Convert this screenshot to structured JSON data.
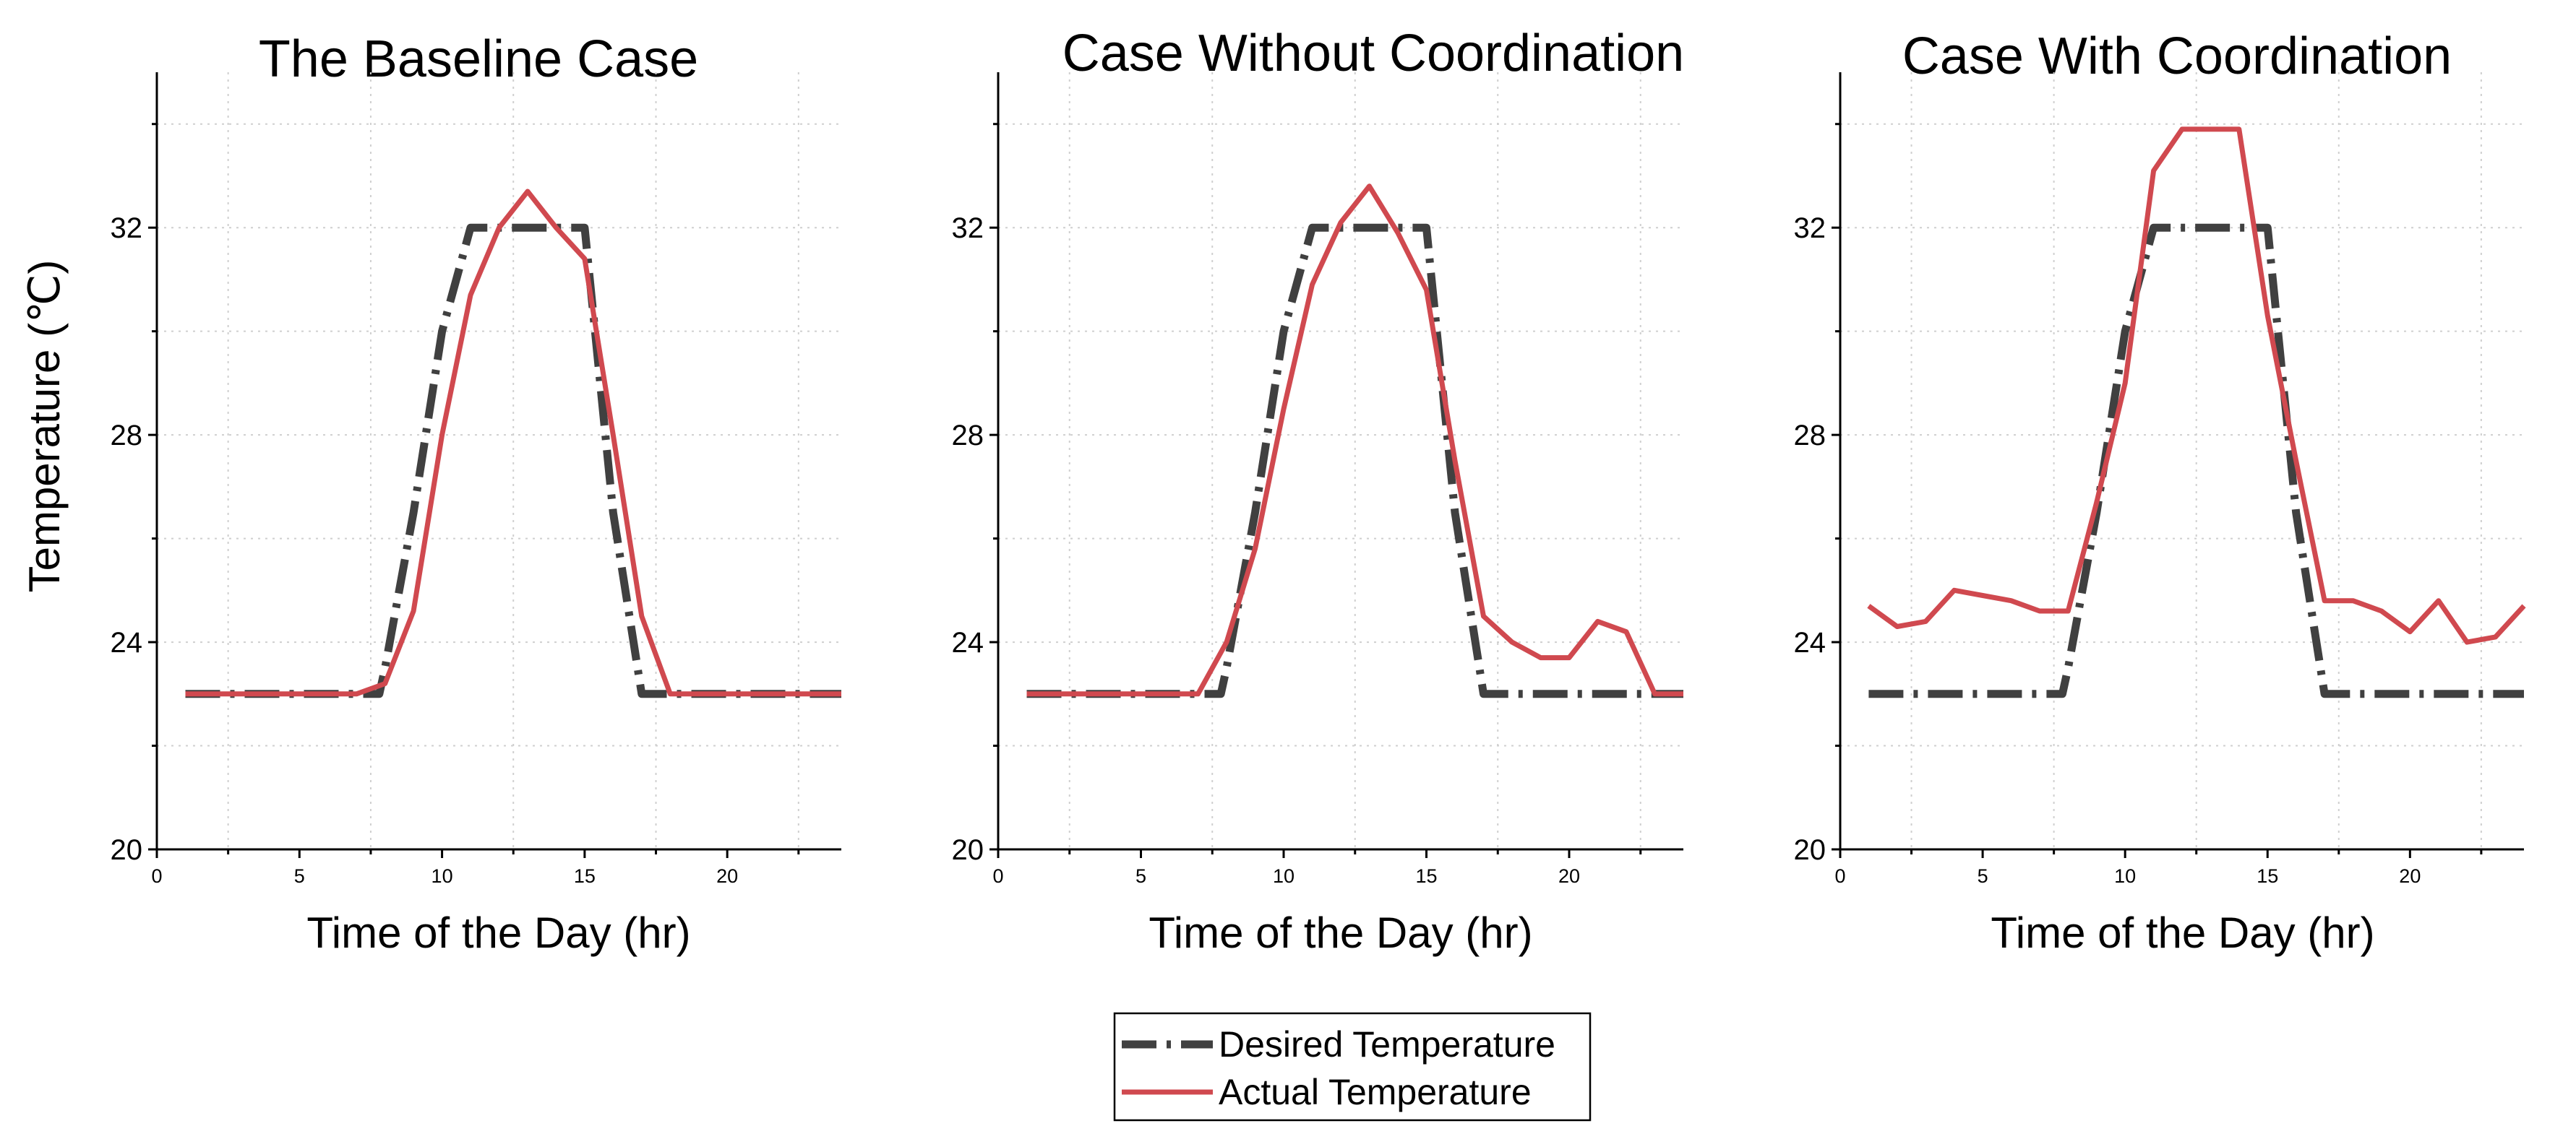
{
  "legend": {
    "desired_label": "Desired Temperature",
    "actual_label": "Actual Temperature"
  },
  "colors": {
    "desired": "#404040",
    "actual": "#d0494f"
  },
  "chart_data": [
    {
      "type": "line",
      "title": "The Baseline Case",
      "xlabel": "Time of the Day (hr)",
      "ylabel": "Temperature (℃)",
      "xlim": [
        0,
        24
      ],
      "ylim": [
        20,
        35
      ],
      "xticks": [
        0,
        5,
        10,
        15,
        20
      ],
      "yticks": [
        20,
        24,
        28,
        32
      ],
      "series": [
        {
          "name": "Desired Temperature",
          "x": [
            1,
            2,
            3,
            4,
            5,
            6,
            7,
            7.8,
            8,
            9,
            10,
            11,
            12,
            13,
            14,
            15,
            16,
            17,
            18,
            19,
            20,
            21,
            22,
            23,
            24
          ],
          "values": [
            23,
            23,
            23,
            23,
            23,
            23,
            23,
            23,
            23.5,
            26.5,
            30,
            32,
            32,
            32,
            32,
            32,
            26.5,
            23,
            23,
            23,
            23,
            23,
            23,
            23,
            23
          ]
        },
        {
          "name": "Actual Temperature",
          "x": [
            1,
            2,
            3,
            4,
            5,
            6,
            7,
            8,
            9,
            10,
            11,
            12,
            13,
            14,
            15,
            16,
            17,
            18,
            19,
            20,
            21,
            22,
            23,
            24
          ],
          "values": [
            23,
            23,
            23,
            23,
            23,
            23,
            23,
            23.2,
            24.6,
            28,
            30.7,
            32,
            32.7,
            32,
            31.4,
            28,
            24.5,
            23,
            23,
            23,
            23,
            23,
            23,
            23
          ]
        }
      ]
    },
    {
      "type": "line",
      "title": "Case Without Coordination",
      "xlabel": "Time of the Day (hr)",
      "ylabel": "",
      "xlim": [
        0,
        24
      ],
      "ylim": [
        20,
        35
      ],
      "xticks": [
        0,
        5,
        10,
        15,
        20
      ],
      "yticks": [
        20,
        24,
        28,
        32
      ],
      "series": [
        {
          "name": "Desired Temperature",
          "x": [
            1,
            2,
            3,
            4,
            5,
            6,
            7,
            7.8,
            8,
            9,
            10,
            11,
            12,
            13,
            14,
            15,
            16,
            17,
            18,
            19,
            20,
            21,
            22,
            23,
            24
          ],
          "values": [
            23,
            23,
            23,
            23,
            23,
            23,
            23,
            23,
            23.5,
            26.5,
            30,
            32,
            32,
            32,
            32,
            32,
            26.5,
            23,
            23,
            23,
            23,
            23,
            23,
            23,
            23
          ]
        },
        {
          "name": "Actual Temperature",
          "x": [
            1,
            2,
            3,
            4,
            5,
            6,
            7,
            8,
            9,
            10,
            11,
            12,
            13,
            14,
            15,
            16,
            17,
            18,
            19,
            20,
            21,
            22,
            23,
            24
          ],
          "values": [
            23,
            23,
            23,
            23,
            23,
            23,
            23,
            24,
            25.8,
            28.5,
            30.9,
            32.1,
            32.8,
            31.9,
            30.8,
            27.5,
            24.5,
            24,
            23.7,
            23.7,
            24.4,
            24.2,
            23,
            23
          ]
        }
      ]
    },
    {
      "type": "line",
      "title": "Case With Coordination",
      "xlabel": "Time of the Day (hr)",
      "ylabel": "",
      "xlim": [
        0,
        24
      ],
      "ylim": [
        20,
        35
      ],
      "xticks": [
        0,
        5,
        10,
        15,
        20
      ],
      "yticks": [
        20,
        24,
        28,
        32
      ],
      "series": [
        {
          "name": "Desired Temperature",
          "x": [
            1,
            2,
            3,
            4,
            5,
            6,
            7,
            7.8,
            8,
            9,
            10,
            11,
            12,
            13,
            14,
            15,
            16,
            17,
            18,
            19,
            20,
            21,
            22,
            23,
            24
          ],
          "values": [
            23,
            23,
            23,
            23,
            23,
            23,
            23,
            23,
            23.5,
            26.5,
            30,
            32,
            32,
            32,
            32,
            32,
            26.5,
            23,
            23,
            23,
            23,
            23,
            23,
            23,
            23
          ]
        },
        {
          "name": "Actual Temperature",
          "x": [
            1,
            2,
            3,
            4,
            5,
            6,
            7,
            8,
            9,
            10,
            11,
            12,
            13,
            14,
            15,
            16,
            17,
            18,
            19,
            20,
            21,
            22,
            23,
            24
          ],
          "values": [
            24.7,
            24.3,
            24.4,
            25,
            24.9,
            24.8,
            24.6,
            24.6,
            26.7,
            29,
            33.1,
            33.9,
            33.9,
            33.9,
            30.3,
            27.5,
            24.8,
            24.8,
            24.6,
            24.2,
            24.8,
            24,
            24.1,
            24.7
          ]
        }
      ]
    }
  ]
}
